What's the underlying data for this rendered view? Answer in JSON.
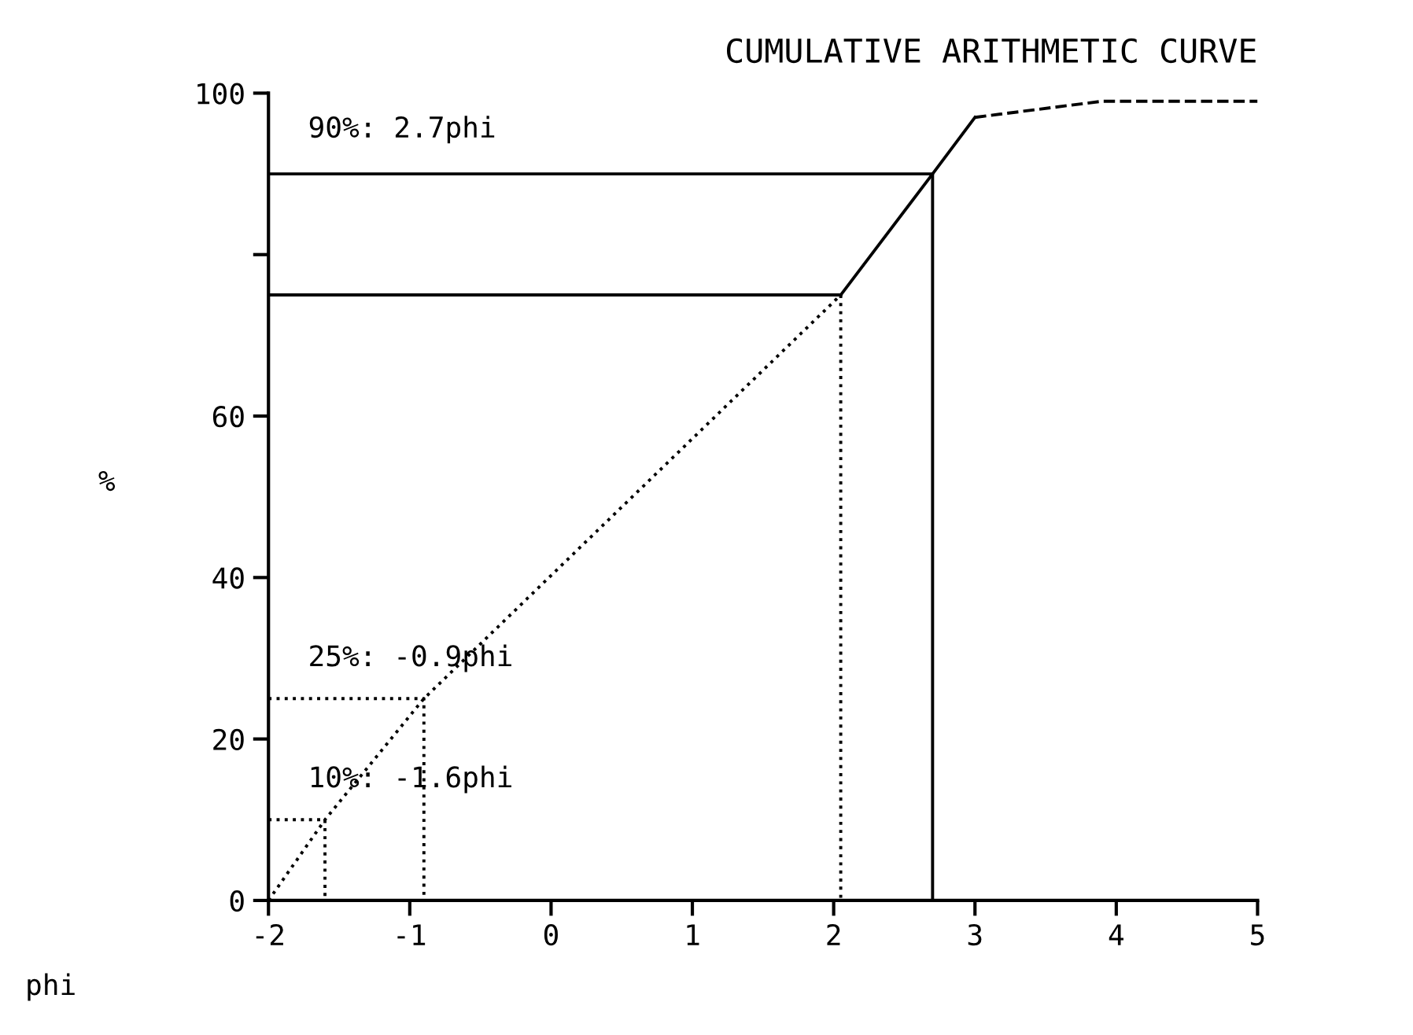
{
  "chart_data": {
    "type": "line",
    "title": "CUMULATIVE ARITHMETIC CURVE",
    "xlabel": "phi",
    "ylabel": "%",
    "xlim": [
      -2,
      5
    ],
    "xticks": [
      -2,
      -1,
      0,
      1,
      2,
      3,
      4,
      5
    ],
    "ylim": [
      0,
      100
    ],
    "yticks": [
      0,
      20,
      40,
      60,
      {
        "value": 80,
        "label": null
      },
      100
    ],
    "grid": false,
    "legend": false,
    "marker": "none",
    "series": [
      {
        "color": "#000000",
        "line_style": "dotted",
        "x": [
          -2,
          -1.6,
          -0.9,
          2.05
        ],
        "values": [
          0,
          10,
          25,
          75
        ]
      },
      {
        "color": "#000000",
        "line_style": "solid",
        "x": [
          2.05,
          2.7,
          3.0
        ],
        "values": [
          75,
          90,
          97
        ]
      },
      {
        "color": "#000000",
        "line_style": "dashed",
        "x": [
          3.0,
          3.9,
          5
        ],
        "values": [
          97,
          99,
          99
        ]
      },
      {
        "color": "#000000",
        "line_style": "solid",
        "x": [
          -2,
          2.7,
          2.7
        ],
        "values": [
          90,
          90,
          0
        ]
      },
      {
        "color": "#000000",
        "line_style": "solid",
        "x": [
          -2,
          2.05
        ],
        "values": [
          75,
          75
        ]
      },
      {
        "color": "#000000",
        "line_style": "dotted",
        "x": [
          2.05,
          2.05
        ],
        "values": [
          75,
          0
        ]
      },
      {
        "color": "#000000",
        "line_style": "dotted",
        "x": [
          -2,
          -0.9,
          -0.9
        ],
        "values": [
          25,
          25,
          0
        ]
      },
      {
        "color": "#000000",
        "line_style": "dotted",
        "x": [
          -2,
          -1.6,
          -1.6
        ],
        "values": [
          10,
          10,
          0
        ]
      }
    ],
    "annotations": [
      "90%: 2.7phi",
      "25%: -0.9phi",
      "10%: -1.6phi"
    ]
  }
}
